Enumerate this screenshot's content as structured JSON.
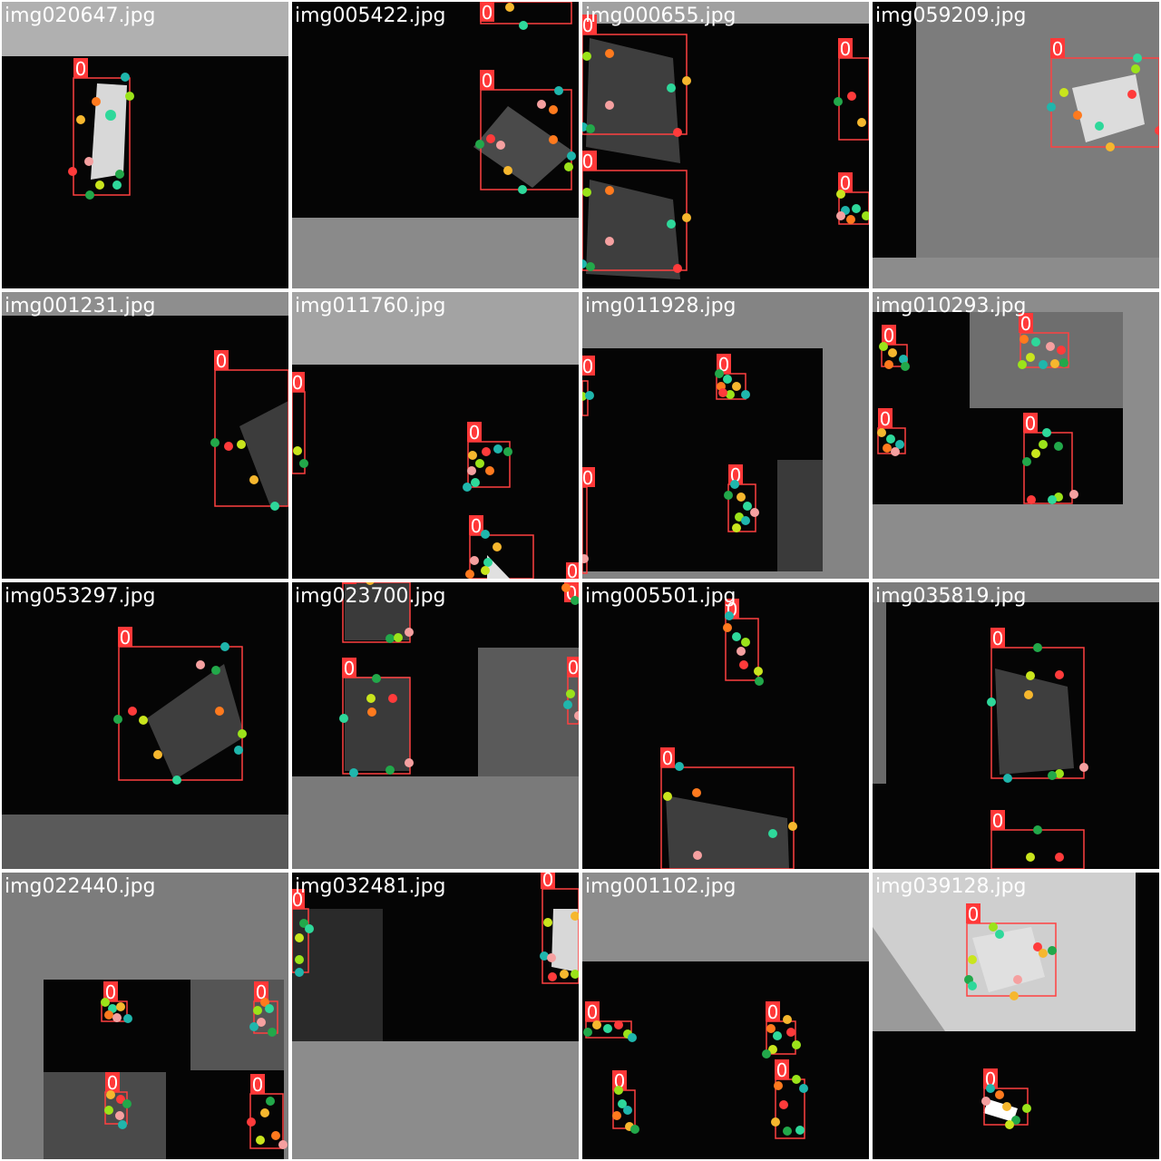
{
  "grid": {
    "tiles": [
      {
        "filename": "img020647.jpg",
        "class_label": "0"
      },
      {
        "filename": "img005422.jpg",
        "class_label": "0"
      },
      {
        "filename": "img000655.jpg",
        "class_label": "0"
      },
      {
        "filename": "img059209.jpg",
        "class_label": "0"
      },
      {
        "filename": "img001231.jpg",
        "class_label": "0"
      },
      {
        "filename": "img011760.jpg",
        "class_label": "0"
      },
      {
        "filename": "img011928.jpg",
        "class_label": "0"
      },
      {
        "filename": "img010293.jpg",
        "class_label": "0"
      },
      {
        "filename": "img053297.jpg",
        "class_label": "0"
      },
      {
        "filename": "img023700.jpg",
        "class_label": "0"
      },
      {
        "filename": "img005501.jpg",
        "class_label": "0"
      },
      {
        "filename": "img035819.jpg",
        "class_label": "0"
      },
      {
        "filename": "img022440.jpg",
        "class_label": "0"
      },
      {
        "filename": "img032481.jpg",
        "class_label": "0"
      },
      {
        "filename": "img001102.jpg",
        "class_label": "0"
      },
      {
        "filename": "img039128.jpg",
        "class_label": "0"
      }
    ]
  },
  "colors": {
    "box": "#ff4040",
    "label_bg": "#ff3838",
    "label_text": "#ffffff",
    "filename_text": "#ffffff",
    "keypoints": [
      "#22a84a",
      "#1fb6ac",
      "#9be31a",
      "#f6b72e",
      "#ff7a1e",
      "#f5a0a0",
      "#2ed89a",
      "#ff3b3b",
      "#25a0c4",
      "#c9e51d"
    ]
  }
}
